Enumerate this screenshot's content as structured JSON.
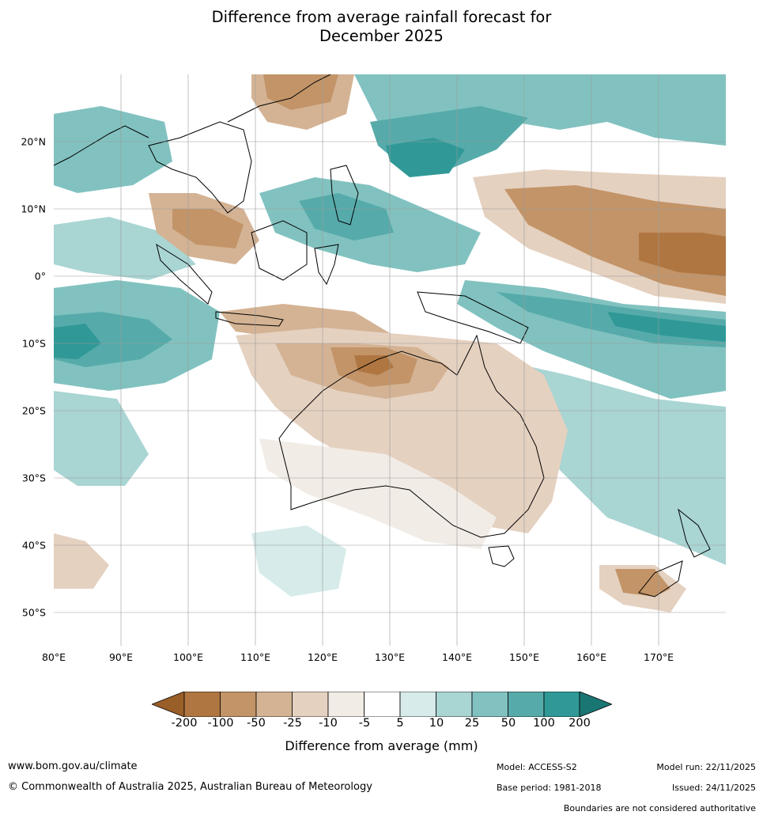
{
  "title": {
    "line1": "Difference from average rainfall forecast for",
    "line2": "December 2025"
  },
  "map": {
    "region": "Australasia and Maritime Continent",
    "lat_labels": [
      "20°N",
      "10°N",
      "0°",
      "10°S",
      "20°S",
      "30°S",
      "40°S",
      "50°S"
    ],
    "lon_labels": [
      "80°E",
      "90°E",
      "100°E",
      "110°E",
      "120°E",
      "130°E",
      "140°E",
      "150°E",
      "160°E",
      "170°E"
    ]
  },
  "legend": {
    "tick_labels": [
      "-200",
      "-100",
      "-50",
      "-25",
      "-10",
      "-5",
      "5",
      "10",
      "25",
      "50",
      "100",
      "200"
    ],
    "colors": [
      "#9a5e28",
      "#b07641",
      "#c29468",
      "#d4b394",
      "#e5d1c0",
      "#f2ece6",
      "#ffffff",
      "#d6ebea",
      "#a9d5d3",
      "#81c2c0",
      "#56abaa",
      "#309997",
      "#1a7673"
    ],
    "title": "Difference from average (mm)"
  },
  "footer": {
    "website": "www.bom.gov.au/climate",
    "copyright": "© Commonwealth of Australia 2025, Australian Bureau of Meteorology",
    "model": "Model: ACCESS-S2",
    "base_period": "Base period: 1981-2018",
    "model_run": "Model run: 22/11/2025",
    "issued": "Issued: 24/11/2025",
    "disclaimer": "Boundaries are not considered authoritative"
  }
}
